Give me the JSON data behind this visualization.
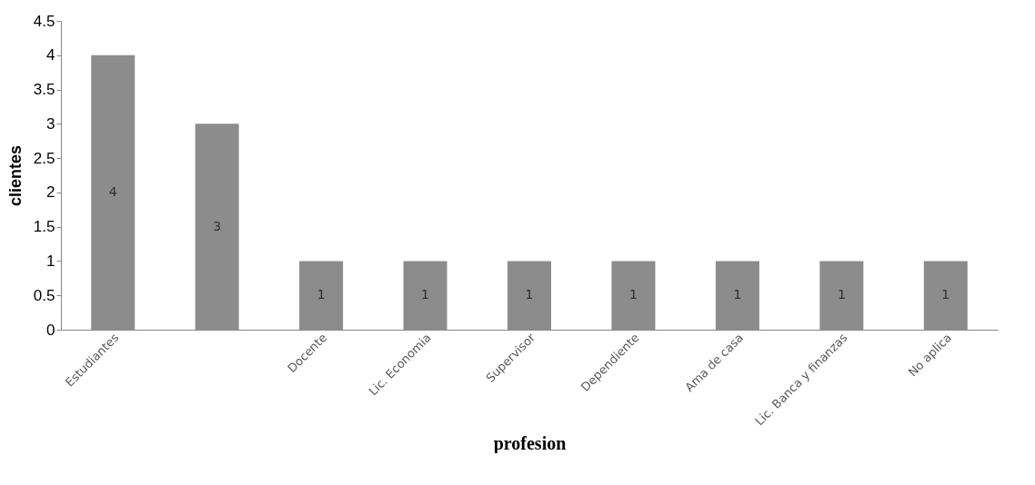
{
  "chart_data": {
    "type": "bar",
    "xlabel": "profesion",
    "ylabel": "clientes",
    "categories": [
      "Estudiantes",
      null,
      "Docente",
      "Lic. Economia",
      "Supervisor",
      "Dependiente",
      "Ama de casa",
      "Lic. Banca y finanzas",
      "No aplica"
    ],
    "values": [
      4,
      3,
      1,
      1,
      1,
      1,
      1,
      1,
      1
    ],
    "color": "#8c8c8c",
    "ylim": [
      0,
      4.5
    ],
    "yticks": [
      0,
      0.5,
      1,
      1.5,
      2,
      2.5,
      3,
      3.5,
      4,
      4.5
    ],
    "grid": false,
    "data_labels": true
  }
}
